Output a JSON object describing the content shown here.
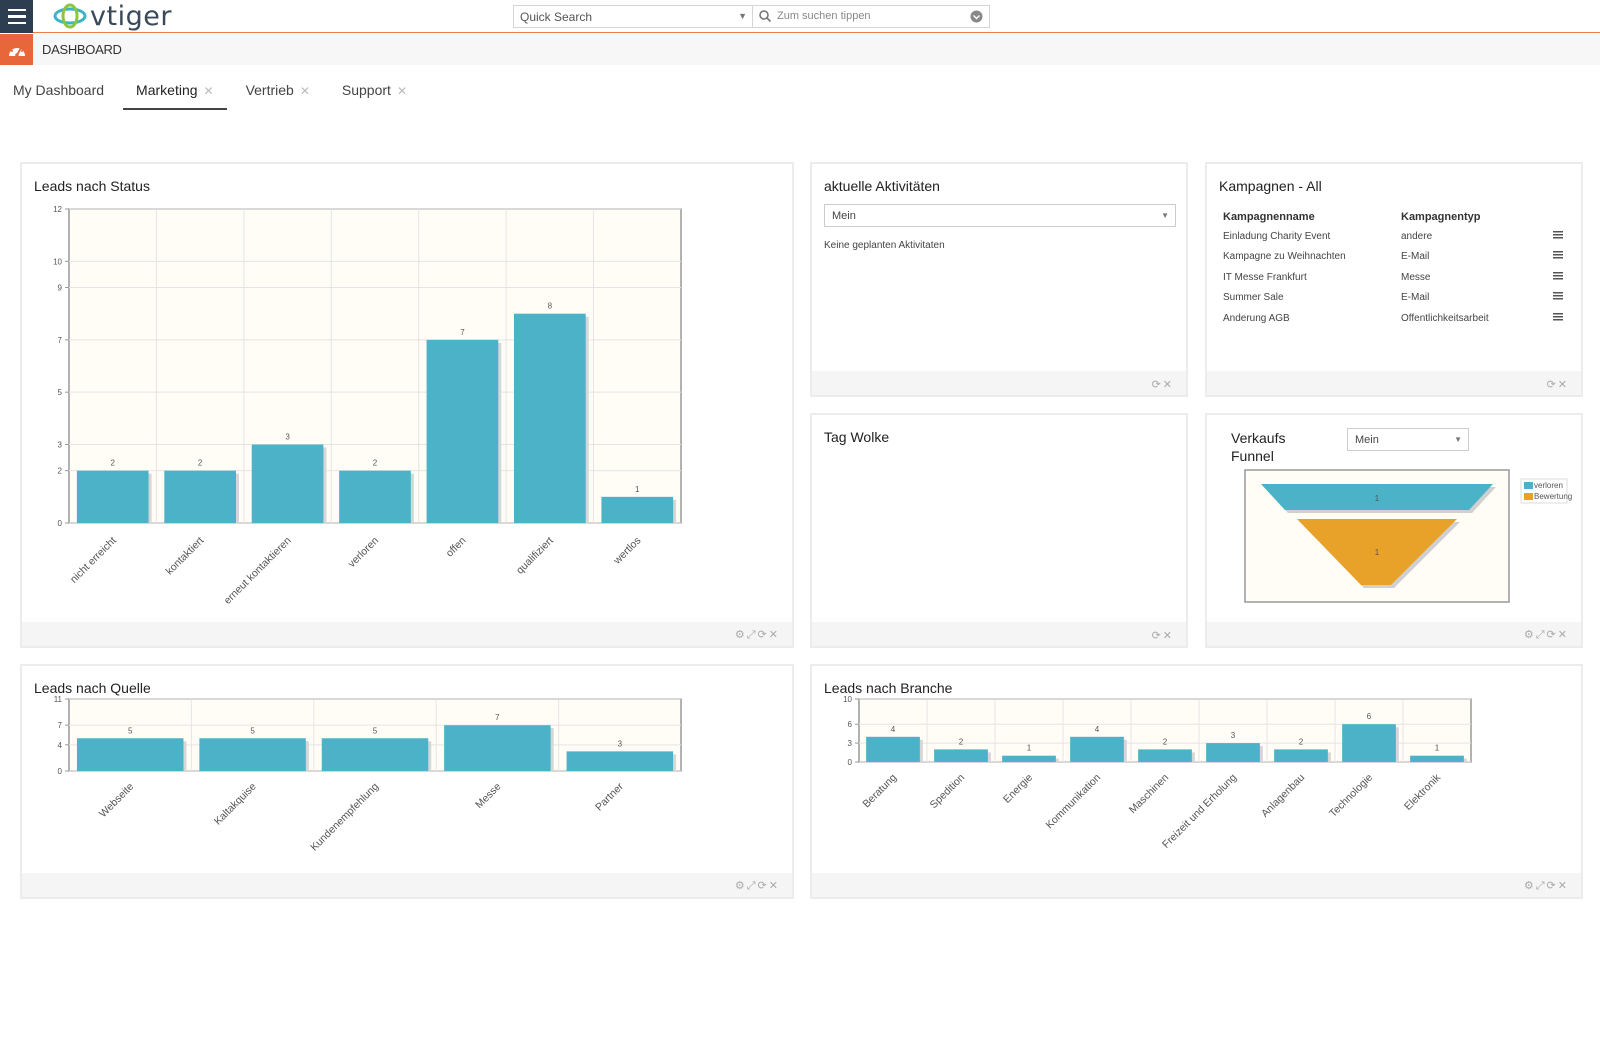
{
  "app": {
    "logo_text": "vtiger",
    "section": "DASHBOARD"
  },
  "search": {
    "select_value": "Quick Search",
    "placeholder": "Zum suchen tippen"
  },
  "tabs": [
    {
      "label": "My Dashboard",
      "closable": false,
      "active": false
    },
    {
      "label": "Marketing",
      "closable": true,
      "active": true
    },
    {
      "label": "Vertrieb",
      "closable": true,
      "active": false
    },
    {
      "label": "Support",
      "closable": true,
      "active": false
    }
  ],
  "widgets": {
    "leads_status": {
      "title": "Leads nach Status"
    },
    "activities": {
      "title": "aktuelle Aktivitäten",
      "select_value": "Mein",
      "empty_text": "Keine geplanten Aktivitaten"
    },
    "campaigns": {
      "title": "Kampagnen - All",
      "col_name": "Kampagnenname",
      "col_type": "Kampagnentyp",
      "rows": [
        {
          "name": "Einladung Charity Event",
          "type": "andere"
        },
        {
          "name": "Kampagne zu Weihnachten",
          "type": "E-Mail"
        },
        {
          "name": "IT Messe Frankfurt",
          "type": "Messe"
        },
        {
          "name": "Summer Sale",
          "type": "E-Mail"
        },
        {
          "name": "Anderung AGB",
          "type": "Offentlichkeitsarbeit"
        }
      ]
    },
    "tagcloud": {
      "title": "Tag Wolke"
    },
    "funnel": {
      "title_line1": "Verkaufs",
      "title_line2": "Funnel",
      "select_value": "Mein"
    },
    "leads_source": {
      "title": "Leads nach Quelle"
    },
    "leads_industry": {
      "title": "Leads nach Branche"
    }
  },
  "colors": {
    "bar": "#4bb2c8",
    "funnel_orange": "#e8a22a",
    "accent": "#e8673a"
  },
  "chart_data": [
    {
      "id": "status",
      "type": "bar",
      "title": "Leads nach Status",
      "categories": [
        "nicht erreicht",
        "kontaktiert",
        "erneut kontaktieren",
        "verloren",
        "offen",
        "qualifiziert",
        "wertlos"
      ],
      "values": [
        2,
        2,
        3,
        2,
        7,
        8,
        1
      ],
      "y_ticks": [
        "0",
        "2",
        "3",
        "5",
        "7",
        "9",
        "10",
        "12"
      ],
      "ylim": [
        0,
        12
      ]
    },
    {
      "id": "source",
      "type": "bar",
      "title": "Leads nach Quelle",
      "categories": [
        "Webseite",
        "Kaltakquise",
        "Kundenempfehlung",
        "Messe",
        "Partner"
      ],
      "values": [
        5,
        5,
        5,
        7,
        3
      ],
      "y_ticks": [
        "0",
        "4",
        "7",
        "11"
      ],
      "ylim": [
        0,
        11
      ]
    },
    {
      "id": "industry",
      "type": "bar",
      "title": "Leads nach Branche",
      "categories": [
        "Beratung",
        "Spedition",
        "Energie",
        "Kommunikation",
        "Maschinen",
        "Freizeit und Erholung",
        "Anlagenbau",
        "Technologie",
        "Elektronik"
      ],
      "values": [
        4,
        2,
        1,
        4,
        2,
        3,
        2,
        6,
        1
      ],
      "y_ticks": [
        "0",
        "3",
        "6",
        "10"
      ],
      "ylim": [
        0,
        10
      ]
    },
    {
      "id": "funnel",
      "type": "funnel",
      "title": "Verkaufs Funnel",
      "stages": [
        {
          "name": "verloren",
          "value": 1
        },
        {
          "name": "Bewertung",
          "value": 1
        }
      ]
    }
  ]
}
